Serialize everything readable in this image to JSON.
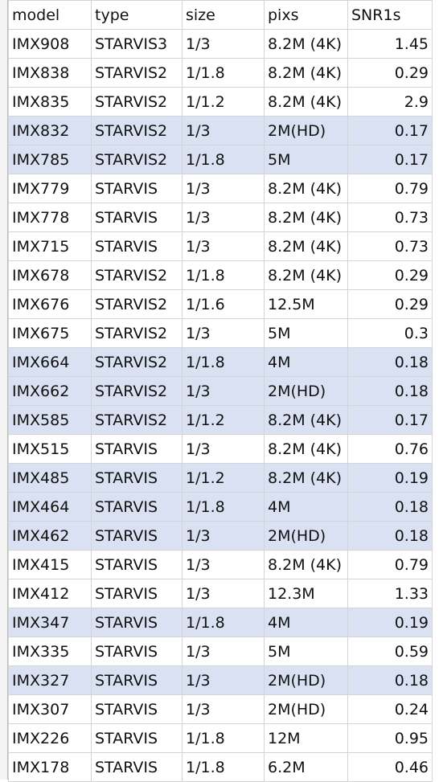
{
  "table": {
    "header": [
      "model",
      "type",
      "size",
      "pixs",
      "SNR1s"
    ],
    "rows": [
      [
        "IMX908",
        "STARVIS3",
        "1/3",
        "8.2M (4K)",
        1.45
      ],
      [
        "IMX838",
        "STARVIS2",
        "1/1.8",
        "8.2M (4K)",
        0.29
      ],
      [
        "IMX835",
        "STARVIS2",
        "1/1.2",
        "8.2M (4K)",
        2.9
      ],
      [
        "IMX832",
        "STARVIS2",
        "1/3",
        "2M(HD)",
        0.17
      ],
      [
        "IMX785",
        "STARVIS2",
        "1/1.8",
        "5M",
        0.17
      ],
      [
        "IMX779",
        "STARVIS",
        "1/3",
        "8.2M (4K)",
        0.79
      ],
      [
        "IMX778",
        "STARVIS",
        "1/3",
        "8.2M (4K)",
        0.73
      ],
      [
        "IMX715",
        "STARVIS",
        "1/3",
        "8.2M (4K)",
        0.73
      ],
      [
        "IMX678",
        "STARVIS2",
        "1/1.8",
        "8.2M (4K)",
        0.29
      ],
      [
        "IMX676",
        "STARVIS2",
        "1/1.6",
        "12.5M",
        0.29
      ],
      [
        "IMX675",
        "STARVIS2",
        "1/3",
        "5M",
        0.3
      ],
      [
        "IMX664",
        "STARVIS2",
        "1/1.8",
        "4M",
        0.18
      ],
      [
        "IMX662",
        "STARVIS2",
        "1/3",
        "2M(HD)",
        0.18
      ],
      [
        "IMX585",
        "STARVIS2",
        "1/1.2",
        "8.2M (4K)",
        0.17
      ],
      [
        "IMX515",
        "STARVIS",
        "1/3",
        "8.2M (4K)",
        0.76
      ],
      [
        "IMX485",
        "STARVIS",
        "1/1.2",
        "8.2M (4K)",
        0.19
      ],
      [
        "IMX464",
        "STARVIS",
        "1/1.8",
        "4M",
        0.18
      ],
      [
        "IMX462",
        "STARVIS",
        "1/3",
        "2M(HD)",
        0.18
      ],
      [
        "IMX415",
        "STARVIS",
        "1/3",
        "8.2M (4K)",
        0.79
      ],
      [
        "IMX412",
        "STARVIS",
        "1/3",
        "12.3M",
        1.33
      ],
      [
        "IMX347",
        "STARVIS",
        "1/1.8",
        "4M",
        0.19
      ],
      [
        "IMX335",
        "STARVIS",
        "1/3",
        "5M",
        0.59
      ],
      [
        "IMX327",
        "STARVIS",
        "1/3",
        "2M(HD)",
        0.18
      ],
      [
        "IMX307",
        "STARVIS",
        "1/3",
        "2M(HD)",
        0.24
      ],
      [
        "IMX226",
        "STARVIS",
        "1/1.8",
        "12M",
        0.95
      ],
      [
        "IMX178",
        "STARVIS",
        "1/1.8",
        "6.2M",
        0.46
      ]
    ],
    "highlighted_rows": [
      3,
      4,
      11,
      12,
      13,
      15,
      16,
      17,
      20,
      22
    ],
    "highlight_color": "#d9e1f2"
  }
}
